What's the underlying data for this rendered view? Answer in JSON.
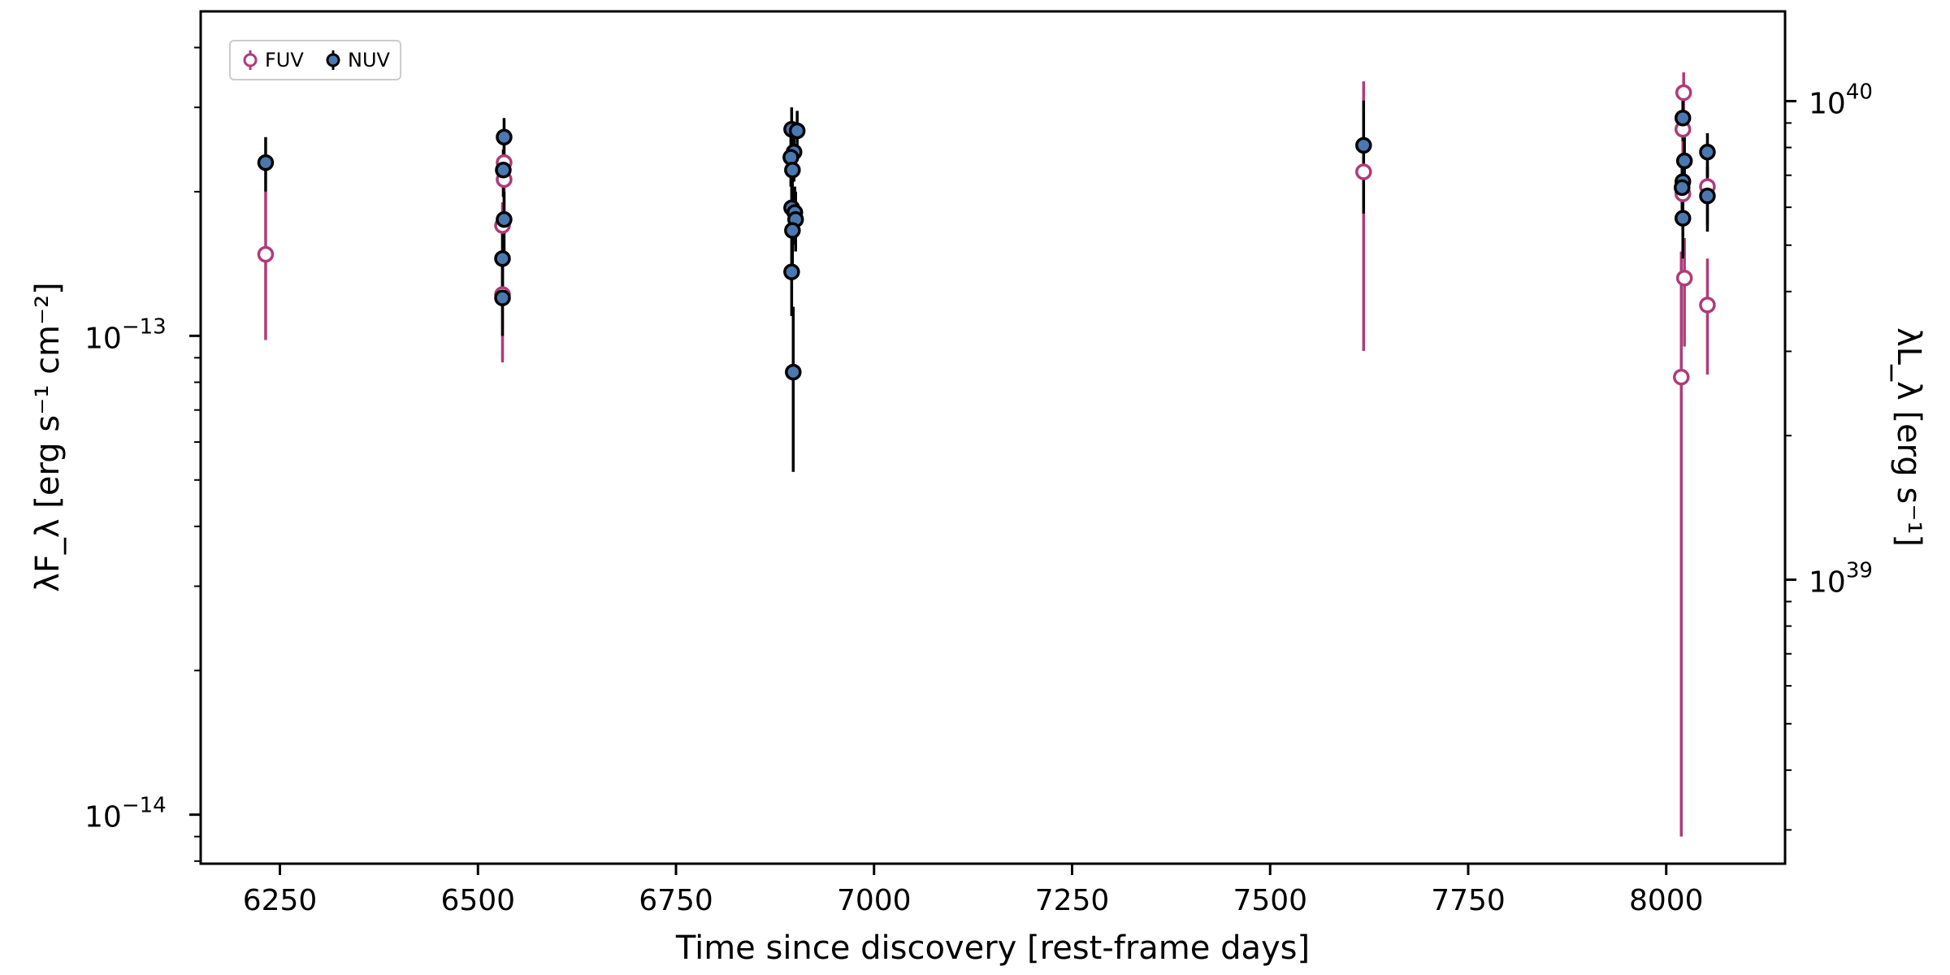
{
  "chart_data": {
    "type": "scatter",
    "title": "",
    "xlabel": "Time since discovery [rest-frame days]",
    "ylabel": "λF_λ [erg s⁻¹ cm⁻²]",
    "ylabel_right": "λL_λ [erg s⁻¹]",
    "xlim": [
      6150,
      8150
    ],
    "ylim": [
      7.9e-15,
      4.76e-13
    ],
    "yscale": "log",
    "ylim_right": [
      2.55e+38,
      1.54e+40
    ],
    "yscale_right": "log",
    "x_ticks": [
      6250,
      6500,
      6750,
      7000,
      7250,
      7500,
      7750,
      8000
    ],
    "x_tick_labels": [
      "6250",
      "6500",
      "6750",
      "7000",
      "7250",
      "7500",
      "7750",
      "8000"
    ],
    "y_ticks": [
      {
        "value": 1e-13,
        "base": "10",
        "exp": "−13"
      },
      {
        "value": 1e-14,
        "base": "10",
        "exp": "−14"
      }
    ],
    "y_ticks_right": [
      {
        "value": 1e+40,
        "base": "10",
        "exp": "40"
      },
      {
        "value": 1e+39,
        "base": "10",
        "exp": "39"
      }
    ],
    "grid": false,
    "legend_position": "top-left",
    "series": [
      {
        "name": "FUV",
        "color": "#b03a7a",
        "marker": "open-circle",
        "points": [
          {
            "x": 6232,
            "y": 1.48e-13,
            "lo": 9.8e-14,
            "hi": 2e-13
          },
          {
            "x": 6533,
            "y": 2.3e-13,
            "lo": 2e-13,
            "hi": 2.5e-13
          },
          {
            "x": 6533,
            "y": 2.12e-13,
            "lo": 1.8e-13,
            "hi": 2.4e-13
          },
          {
            "x": 6531,
            "y": 1.7e-13,
            "lo": 1.4e-13,
            "hi": 1.9e-13
          },
          {
            "x": 6531,
            "y": 1.22e-13,
            "lo": 8.8e-14,
            "hi": 1.5e-13
          },
          {
            "x": 7618,
            "y": 2.2e-13,
            "lo": 9.3e-14,
            "hi": 3.4e-13
          },
          {
            "x": 8022,
            "y": 3.22e-13,
            "lo": 2.8e-13,
            "hi": 3.55e-13
          },
          {
            "x": 8021,
            "y": 2.7e-13,
            "lo": 2.3e-13,
            "hi": 3e-13
          },
          {
            "x": 8021,
            "y": 1.98e-13,
            "lo": 1.6e-13,
            "hi": 2.3e-13
          },
          {
            "x": 8023,
            "y": 1.32e-13,
            "lo": 9.5e-14,
            "hi": 1.6e-13
          },
          {
            "x": 8019,
            "y": 8.2e-14,
            "lo": 9e-15,
            "hi": 1.5e-13
          },
          {
            "x": 8052,
            "y": 2.05e-13,
            "lo": 1.7e-13,
            "hi": 2.3e-13
          },
          {
            "x": 8052,
            "y": 1.16e-13,
            "lo": 8.3e-14,
            "hi": 1.45e-13
          }
        ]
      },
      {
        "name": "NUV",
        "color": "#4a78b0",
        "marker": "filled-circle",
        "points": [
          {
            "x": 6232,
            "y": 2.3e-13,
            "lo": 2e-13,
            "hi": 2.6e-13
          },
          {
            "x": 6533,
            "y": 2.6e-13,
            "lo": 2.3e-13,
            "hi": 2.85e-13
          },
          {
            "x": 6532,
            "y": 2.22e-13,
            "lo": 1.95e-13,
            "hi": 2.45e-13
          },
          {
            "x": 6533,
            "y": 1.75e-13,
            "lo": 1.5e-13,
            "hi": 2e-13
          },
          {
            "x": 6531,
            "y": 1.45e-13,
            "lo": 1.2e-13,
            "hi": 1.7e-13
          },
          {
            "x": 6531,
            "y": 1.2e-13,
            "lo": 1e-13,
            "hi": 1.4e-13
          },
          {
            "x": 6896,
            "y": 2.7e-13,
            "lo": 2.4e-13,
            "hi": 3e-13
          },
          {
            "x": 6903,
            "y": 2.68e-13,
            "lo": 2.4e-13,
            "hi": 2.95e-13
          },
          {
            "x": 6899,
            "y": 2.42e-13,
            "lo": 2.1e-13,
            "hi": 2.7e-13
          },
          {
            "x": 6895,
            "y": 2.36e-13,
            "lo": 2.05e-13,
            "hi": 2.6e-13
          },
          {
            "x": 6897,
            "y": 2.22e-13,
            "lo": 1.9e-13,
            "hi": 2.5e-13
          },
          {
            "x": 6896,
            "y": 1.85e-13,
            "lo": 1.6e-13,
            "hi": 2.1e-13
          },
          {
            "x": 6900,
            "y": 1.81e-13,
            "lo": 1.55e-13,
            "hi": 2.05e-13
          },
          {
            "x": 6901,
            "y": 1.75e-13,
            "lo": 1.5e-13,
            "hi": 2e-13
          },
          {
            "x": 6897,
            "y": 1.66e-13,
            "lo": 1.4e-13,
            "hi": 1.9e-13
          },
          {
            "x": 6896,
            "y": 1.36e-13,
            "lo": 1.1e-13,
            "hi": 1.6e-13
          },
          {
            "x": 6898,
            "y": 8.4e-14,
            "lo": 5.2e-14,
            "hi": 1.15e-13
          },
          {
            "x": 7618,
            "y": 2.5e-13,
            "lo": 1.8e-13,
            "hi": 3.1e-13
          },
          {
            "x": 8021,
            "y": 2.85e-13,
            "lo": 2.55e-13,
            "hi": 3.1e-13
          },
          {
            "x": 8023,
            "y": 2.32e-13,
            "lo": 2e-13,
            "hi": 2.6e-13
          },
          {
            "x": 8021,
            "y": 2.1e-13,
            "lo": 1.8e-13,
            "hi": 2.35e-13
          },
          {
            "x": 8020,
            "y": 2.04e-13,
            "lo": 1.75e-13,
            "hi": 2.3e-13
          },
          {
            "x": 8021,
            "y": 1.76e-13,
            "lo": 1.45e-13,
            "hi": 2.05e-13
          },
          {
            "x": 8052,
            "y": 2.42e-13,
            "lo": 2.15e-13,
            "hi": 2.65e-13
          },
          {
            "x": 8052,
            "y": 1.96e-13,
            "lo": 1.65e-13,
            "hi": 2.25e-13
          }
        ]
      }
    ]
  }
}
